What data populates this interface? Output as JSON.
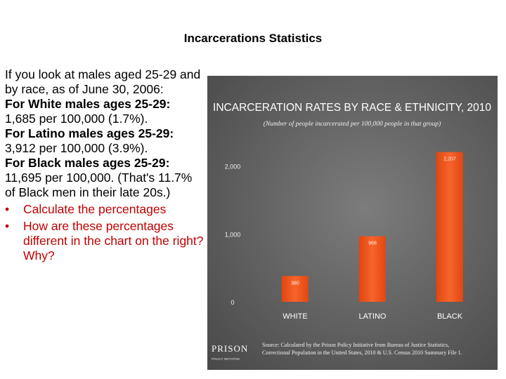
{
  "slide": {
    "title": "Incarcerations Statistics",
    "paragraphs": [
      {
        "text": "If you look at males aged 25-29 and by race, as of June 30, 2006:",
        "bold": false
      },
      {
        "text": "For White males ages 25-29:",
        "bold": true
      },
      {
        "text": "1,685 per 100,000 (1.7%).",
        "bold": false
      },
      {
        "text": "For Latino males ages 25-29:",
        "bold": true
      },
      {
        "text": "3,912 per 100,000 (3.9%).",
        "bold": false
      },
      {
        "text": "For Black males ages 25-29:",
        "bold": true
      },
      {
        "text": "11,695 per 100,000. (That's 11.7% of Black men in their late 20s.)",
        "bold": false
      }
    ],
    "bullets": [
      "Calculate the percentages",
      "How are these percentages different in the chart on the right? Why?"
    ],
    "bullet_glyph": "•",
    "text_color": "#000000",
    "bullet_color": "#c00000"
  },
  "chart_data": {
    "type": "bar",
    "title": "INCARCERATION RATES BY RACE & ETHNICITY, 2010",
    "subtitle": "(Number of people incarcerated per 100,000 people in that group)",
    "categories": [
      "WHITE",
      "LATINO",
      "BLACK"
    ],
    "values": [
      380,
      966,
      2207
    ],
    "value_labels": [
      "380",
      "966",
      "2,207"
    ],
    "y_ticks": [
      0,
      1000,
      2000
    ],
    "y_tick_labels": [
      "0",
      "1,000",
      "2,000"
    ],
    "ylim": [
      0,
      2400
    ],
    "grid": false,
    "legend": "none",
    "bar_color": "#f0531f",
    "background_color": "#6d6d6d",
    "source": "Source: Calculated by the Prison Policy Initiative from Bureau of Justice Statistics, Correctional Population in the United States, 2010 & U.S. Census 2010 Summary File 1.",
    "logo_text": "PRISON",
    "logo_subtext": "POLICY INITIATIVE"
  }
}
